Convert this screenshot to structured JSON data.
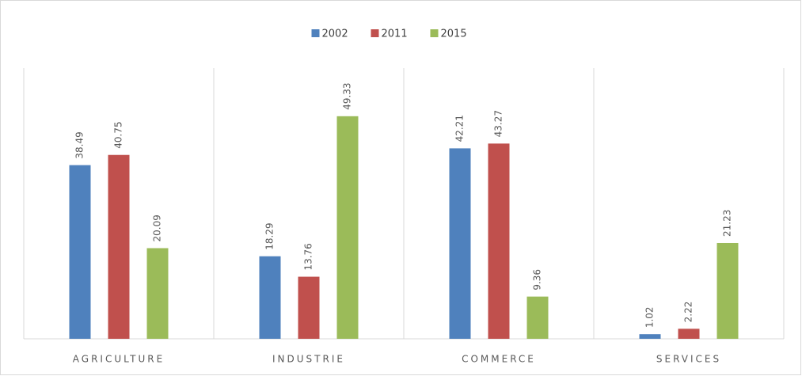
{
  "chart_data": {
    "type": "bar",
    "categories": [
      "AGRICULTURE",
      "INDUSTRIE",
      "COMMERCE",
      "SERVICES"
    ],
    "series": [
      {
        "name": "2002",
        "color": "#4f81bd",
        "values": [
          38.49,
          18.29,
          42.21,
          1.02
        ]
      },
      {
        "name": "2011",
        "color": "#c0504d",
        "values": [
          40.75,
          13.76,
          43.27,
          2.22
        ]
      },
      {
        "name": "2015",
        "color": "#9bbb59",
        "values": [
          20.09,
          49.33,
          9.36,
          21.23
        ]
      }
    ],
    "ylim": [
      0,
      60
    ],
    "legend": "top"
  }
}
